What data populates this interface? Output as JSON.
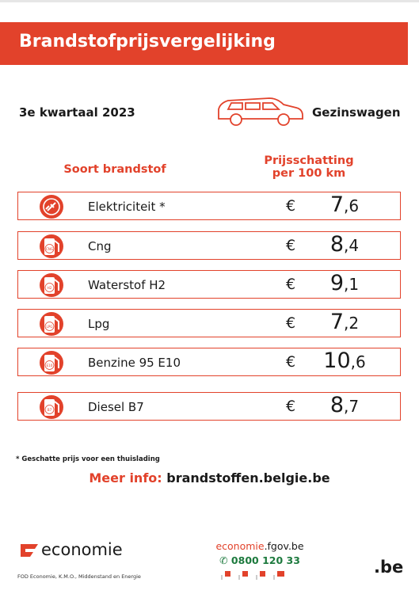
{
  "header": {
    "title": "Brandstofprijsvergelijking",
    "period": "3e kwartaal 2023",
    "vehicle": "Gezinswagen"
  },
  "table": {
    "col_fuel": "Soort brandstof",
    "col_price": [
      "Prijsschatting",
      "per 100 km"
    ],
    "rows": [
      {
        "badge": null,
        "name": "Elektriciteit *",
        "currency": "€",
        "price_whole": "7",
        "price_decimal": ",6"
      },
      {
        "badge": "CNG",
        "name": "Cng",
        "currency": "€",
        "price_whole": "8",
        "price_decimal": ",4"
      },
      {
        "badge": "H2",
        "name": "Waterstof H2",
        "currency": "€",
        "price_whole": "9",
        "price_decimal": ",1"
      },
      {
        "badge": "LPG",
        "name": "Lpg",
        "currency": "€",
        "price_whole": "7",
        "price_decimal": ",2"
      },
      {
        "badge": "E10",
        "name": "Benzine 95 E10",
        "currency": "€",
        "price_whole": "10",
        "price_decimal": ",6"
      },
      {
        "badge": "B7",
        "name": "Diesel B7",
        "currency": "€",
        "price_whole": "8",
        "price_decimal": ",7"
      }
    ]
  },
  "footnote": "* Geschatte prijs voor een thuislading",
  "more_info": {
    "label": "Meer info:",
    "url": "brandstoffen.belgie.be"
  },
  "footer": {
    "logo": "economie",
    "org": "FOD Economie, K.M.O., Middenstand en Energie",
    "site_prefix": "economie",
    "site_suffix": ".fgov.be",
    "phone": "0800 120 33",
    "be": ".be"
  }
}
